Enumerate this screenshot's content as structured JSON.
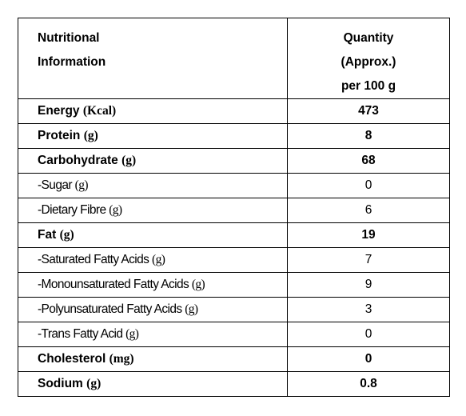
{
  "table": {
    "header": {
      "label_lines": [
        "Nutritional",
        "Information"
      ],
      "value_lines": [
        "Quantity",
        "(Approx.)",
        "per 100 g"
      ]
    },
    "rows": [
      {
        "name": "Energy",
        "unit": "(Kcal)",
        "value": "473",
        "bold": true
      },
      {
        "name": "Protein",
        "unit": "(g)",
        "value": "8",
        "bold": true
      },
      {
        "name": "Carbohydrate",
        "unit": "(g)",
        "value": "68",
        "bold": true
      },
      {
        "name": "-Sugar",
        "unit": "(g)",
        "value": "0",
        "bold": false
      },
      {
        "name": "-Dietary Fibre",
        "unit": "(g)",
        "value": "6",
        "bold": false
      },
      {
        "name": "Fat",
        "unit": "(g)",
        "value": "19",
        "bold": true
      },
      {
        "name": "-Saturated Fatty Acids",
        "unit": "(g)",
        "value": "7",
        "bold": false
      },
      {
        "name": "-Monounsaturated Fatty Acids",
        "unit": "(g)",
        "value": "9",
        "bold": false
      },
      {
        "name": "-Polyunsaturated Fatty Acids",
        "unit": "(g)",
        "value": "3",
        "bold": false
      },
      {
        "name": "-Trans Fatty Acid",
        "unit": "(g)",
        "value": "0",
        "bold": false
      },
      {
        "name": "Cholesterol",
        "unit": "(mg)",
        "value": "0",
        "bold": true
      },
      {
        "name": "Sodium",
        "unit": "(g)",
        "value": "0.8",
        "bold": true
      }
    ]
  }
}
